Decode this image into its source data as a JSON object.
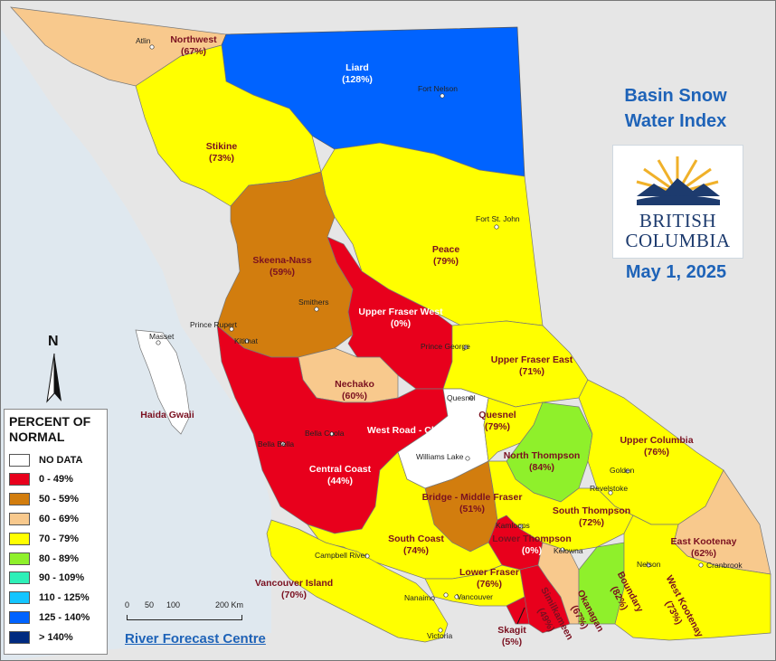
{
  "title": {
    "line1": "Basin Snow",
    "line2": "Water Index",
    "date": "May 1, 2025"
  },
  "logo": {
    "line1": "BRITISH",
    "line2": "COLUMBIA"
  },
  "credit": "River Forecast Centre",
  "north_label": "N",
  "scale": {
    "ticks": [
      "0",
      "50",
      "100",
      "200 Km"
    ]
  },
  "legend": {
    "title_line1": "PERCENT OF",
    "title_line2": "NORMAL",
    "items": [
      {
        "label": "NO DATA",
        "color": "#ffffff"
      },
      {
        "label": "0 - 49%",
        "color": "#e8001c"
      },
      {
        "label": "50 - 59%",
        "color": "#d27d0e"
      },
      {
        "label": "60 - 69%",
        "color": "#f8c98d"
      },
      {
        "label": "70 - 79%",
        "color": "#ffff00"
      },
      {
        "label": "80 - 89%",
        "color": "#8ff02b"
      },
      {
        "label": "90 - 109%",
        "color": "#2ef0b8"
      },
      {
        "label": "110 - 125%",
        "color": "#14c5ff"
      },
      {
        "label": "125 - 140%",
        "color": "#0063ff"
      },
      {
        "label": "> 140%",
        "color": "#002a80"
      }
    ]
  },
  "basins": [
    {
      "name": "Northwest",
      "pct": "(67%)",
      "color": "#f8c98d"
    },
    {
      "name": "Liard",
      "pct": "(128%)",
      "color": "#0063ff"
    },
    {
      "name": "Stikine",
      "pct": "(73%)",
      "color": "#ffff00"
    },
    {
      "name": "Skeena-Nass",
      "pct": "(59%)",
      "color": "#d27d0e"
    },
    {
      "name": "Peace",
      "pct": "(79%)",
      "color": "#ffff00"
    },
    {
      "name": "Upper Fraser West",
      "pct": "(0%)",
      "color": "#e8001c"
    },
    {
      "name": "Upper Fraser East",
      "pct": "(71%)",
      "color": "#ffff00"
    },
    {
      "name": "Nechako",
      "pct": "(60%)",
      "color": "#f8c98d"
    },
    {
      "name": "Haida Gwaii",
      "pct": "",
      "color": "#ffffff"
    },
    {
      "name": "West Road - Chilcotin",
      "pct": "",
      "color": "#e8001c"
    },
    {
      "name": "Quesnel",
      "pct": "(79%)",
      "color": "#ffff00"
    },
    {
      "name": "Central Coast",
      "pct": "(44%)",
      "color": "#e8001c"
    },
    {
      "name": "North Thompson",
      "pct": "(84%)",
      "color": "#8ff02b"
    },
    {
      "name": "Upper Columbia",
      "pct": "(76%)",
      "color": "#ffff00"
    },
    {
      "name": "Bridge - Middle Fraser",
      "pct": "(51%)",
      "color": "#d27d0e"
    },
    {
      "name": "South Thompson",
      "pct": "(72%)",
      "color": "#ffff00"
    },
    {
      "name": "South Coast",
      "pct": "(74%)",
      "color": "#ffff00"
    },
    {
      "name": "Lower Thompson",
      "pct": "(0%)",
      "color": "#e8001c"
    },
    {
      "name": "East Kootenay",
      "pct": "(62%)",
      "color": "#f8c98d"
    },
    {
      "name": "Vancouver Island",
      "pct": "(70%)",
      "color": "#ffff00"
    },
    {
      "name": "Lower Fraser",
      "pct": "(76%)",
      "color": "#ffff00"
    },
    {
      "name": "Similkameen",
      "pct": "(49%)",
      "color": "#e8001c"
    },
    {
      "name": "Okanagan",
      "pct": "(67%)",
      "color": "#f8c98d"
    },
    {
      "name": "Boundary",
      "pct": "(82%)",
      "color": "#8ff02b"
    },
    {
      "name": "West Kootenay",
      "pct": "(73%)",
      "color": "#ffff00"
    },
    {
      "name": "Skagit",
      "pct": "(5%)",
      "color": "#e8001c"
    }
  ],
  "cities": [
    "Atlin",
    "Fort Nelson",
    "Fort St. John",
    "Smithers",
    "Prince Rupert",
    "Kitimat",
    "Masset",
    "Prince George",
    "Quesnel",
    "Bella Coola",
    "Bella Bella",
    "Williams Lake",
    "Golden",
    "Revelstoke",
    "Kamloops",
    "Kelowna",
    "Nelson",
    "Cranbrook",
    "Campbell River",
    "Nanaimo",
    "Vancouver",
    "Victoria"
  ]
}
